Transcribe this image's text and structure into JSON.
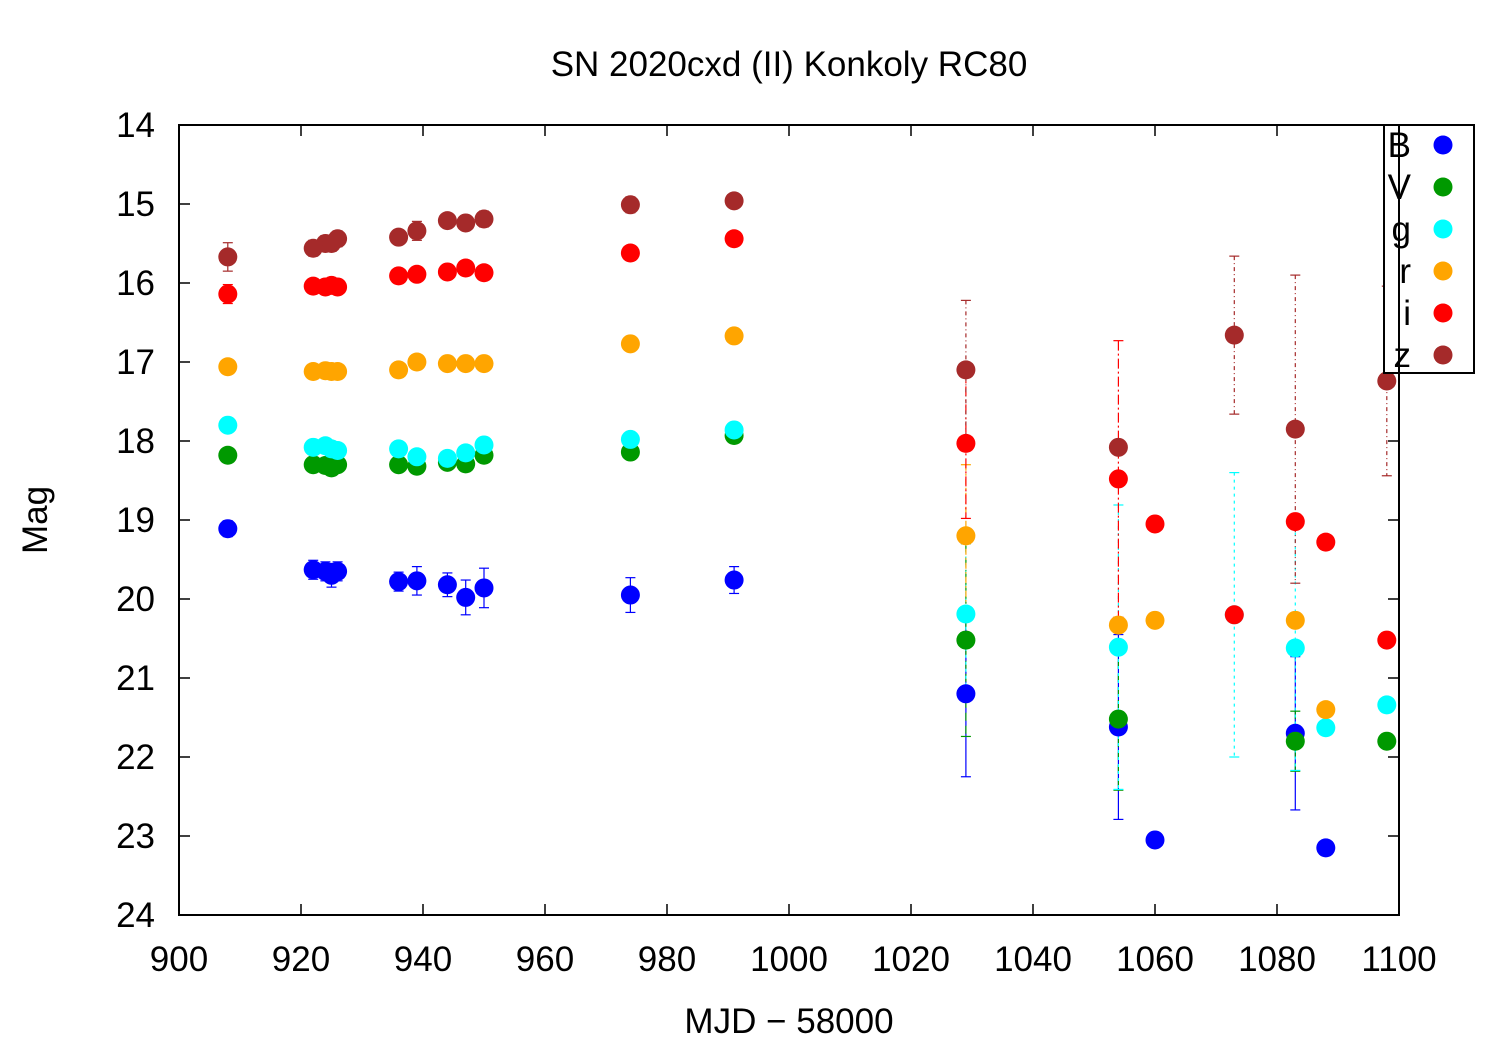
{
  "chart_data": {
    "type": "scatter",
    "title": "SN 2020cxd (II) Konkoly RC80",
    "xlabel": "MJD − 58000",
    "ylabel": "Mag",
    "xlim": [
      900,
      1100
    ],
    "ylim": [
      14,
      24
    ],
    "y_inverted": true,
    "grid": false,
    "legend_position": "top-right",
    "xticks": [
      "900",
      "920",
      "940",
      "960",
      "980",
      "1000",
      "1020",
      "1040",
      "1060",
      "1080",
      "1100"
    ],
    "yticks": [
      "14",
      "15",
      "16",
      "17",
      "18",
      "19",
      "20",
      "21",
      "22",
      "23",
      "24"
    ],
    "series": [
      {
        "name": "B",
        "color": "#0000ff",
        "points": [
          {
            "x": 908,
            "y": 19.11,
            "err": 0.1
          },
          {
            "x": 922,
            "y": 19.63,
            "err": 0.12
          },
          {
            "x": 924,
            "y": 19.65,
            "err": 0.12
          },
          {
            "x": 925,
            "y": 19.7,
            "err": 0.15
          },
          {
            "x": 926,
            "y": 19.65,
            "err": 0.12
          },
          {
            "x": 936,
            "y": 19.78,
            "err": 0.12
          },
          {
            "x": 939,
            "y": 19.77,
            "err": 0.18
          },
          {
            "x": 944,
            "y": 19.82,
            "err": 0.15
          },
          {
            "x": 947,
            "y": 19.98,
            "err": 0.22
          },
          {
            "x": 950,
            "y": 19.86,
            "err": 0.25
          },
          {
            "x": 974,
            "y": 19.95,
            "err": 0.22
          },
          {
            "x": 991,
            "y": 19.76,
            "err": 0.17
          },
          {
            "x": 1029,
            "y": 21.2,
            "err": 1.05
          },
          {
            "x": 1054,
            "y": 21.62,
            "err": 1.17
          },
          {
            "x": 1060,
            "y": 23.05,
            "err": 0
          },
          {
            "x": 1083,
            "y": 21.7,
            "err": 0.97
          },
          {
            "x": 1088,
            "y": 23.15,
            "err": 0
          }
        ]
      },
      {
        "name": "V",
        "color": "#009900",
        "points": [
          {
            "x": 908,
            "y": 18.18,
            "err": 0.05
          },
          {
            "x": 922,
            "y": 18.3,
            "err": 0.06
          },
          {
            "x": 924,
            "y": 18.31,
            "err": 0.06
          },
          {
            "x": 925,
            "y": 18.34,
            "err": 0.06
          },
          {
            "x": 926,
            "y": 18.3,
            "err": 0.06
          },
          {
            "x": 936,
            "y": 18.3,
            "err": 0.06
          },
          {
            "x": 939,
            "y": 18.32,
            "err": 0.07
          },
          {
            "x": 944,
            "y": 18.27,
            "err": 0.07
          },
          {
            "x": 947,
            "y": 18.29,
            "err": 0.07
          },
          {
            "x": 950,
            "y": 18.18,
            "err": 0.07
          },
          {
            "x": 974,
            "y": 18.14,
            "err": 0.06
          },
          {
            "x": 991,
            "y": 17.93,
            "err": 0.05
          },
          {
            "x": 1029,
            "y": 20.52,
            "err": 1.22
          },
          {
            "x": 1054,
            "y": 21.52,
            "err": 0.9
          },
          {
            "x": 1083,
            "y": 21.8,
            "err": 0.38
          },
          {
            "x": 1098,
            "y": 21.8,
            "err": 0
          }
        ]
      },
      {
        "name": "g",
        "color": "#00ffff",
        "points": [
          {
            "x": 908,
            "y": 17.8,
            "err": 0.05
          },
          {
            "x": 922,
            "y": 18.08,
            "err": 0.06
          },
          {
            "x": 924,
            "y": 18.06,
            "err": 0.06
          },
          {
            "x": 925,
            "y": 18.1,
            "err": 0.06
          },
          {
            "x": 926,
            "y": 18.12,
            "err": 0.06
          },
          {
            "x": 936,
            "y": 18.1,
            "err": 0.06
          },
          {
            "x": 939,
            "y": 18.2,
            "err": 0.07
          },
          {
            "x": 944,
            "y": 18.22,
            "err": 0.07
          },
          {
            "x": 947,
            "y": 18.15,
            "err": 0.07
          },
          {
            "x": 950,
            "y": 18.05,
            "err": 0.07
          },
          {
            "x": 974,
            "y": 17.98,
            "err": 0.06
          },
          {
            "x": 991,
            "y": 17.86,
            "err": 0.05
          },
          {
            "x": 1029,
            "y": 20.19,
            "err": 1.08
          },
          {
            "x": 1054,
            "y": 20.61,
            "err": 1.8
          },
          {
            "x": 1073,
            "y": 20.2,
            "err": 1.8
          },
          {
            "x": 1083,
            "y": 20.62,
            "err": 1.55
          },
          {
            "x": 1088,
            "y": 21.63,
            "err": 0
          },
          {
            "x": 1098,
            "y": 21.34,
            "err": 0
          }
        ]
      },
      {
        "name": "r",
        "color": "#ffa500",
        "points": [
          {
            "x": 908,
            "y": 17.06,
            "err": 0.04
          },
          {
            "x": 922,
            "y": 17.12,
            "err": 0.04
          },
          {
            "x": 924,
            "y": 17.11,
            "err": 0.04
          },
          {
            "x": 925,
            "y": 17.12,
            "err": 0.04
          },
          {
            "x": 926,
            "y": 17.12,
            "err": 0.04
          },
          {
            "x": 936,
            "y": 17.1,
            "err": 0.04
          },
          {
            "x": 939,
            "y": 17.0,
            "err": 0.04
          },
          {
            "x": 944,
            "y": 17.02,
            "err": 0.04
          },
          {
            "x": 947,
            "y": 17.02,
            "err": 0.04
          },
          {
            "x": 950,
            "y": 17.02,
            "err": 0.04
          },
          {
            "x": 974,
            "y": 16.77,
            "err": 0.04
          },
          {
            "x": 991,
            "y": 16.67,
            "err": 0.04
          },
          {
            "x": 1029,
            "y": 19.2,
            "err": 0.9
          },
          {
            "x": 1054,
            "y": 20.33,
            "err": 0
          },
          {
            "x": 1060,
            "y": 20.27,
            "err": 0
          },
          {
            "x": 1083,
            "y": 20.27,
            "err": 0
          },
          {
            "x": 1088,
            "y": 21.4,
            "err": 0
          }
        ]
      },
      {
        "name": "i",
        "color": "#ff0000",
        "points": [
          {
            "x": 908,
            "y": 16.14,
            "err": 0.12
          },
          {
            "x": 922,
            "y": 16.04,
            "err": 0.04
          },
          {
            "x": 924,
            "y": 16.05,
            "err": 0.04
          },
          {
            "x": 925,
            "y": 16.03,
            "err": 0.04
          },
          {
            "x": 926,
            "y": 16.05,
            "err": 0.04
          },
          {
            "x": 936,
            "y": 15.91,
            "err": 0.04
          },
          {
            "x": 939,
            "y": 15.89,
            "err": 0.04
          },
          {
            "x": 944,
            "y": 15.86,
            "err": 0.04
          },
          {
            "x": 947,
            "y": 15.81,
            "err": 0.04
          },
          {
            "x": 950,
            "y": 15.87,
            "err": 0.04
          },
          {
            "x": 974,
            "y": 15.62,
            "err": 0.04
          },
          {
            "x": 991,
            "y": 15.44,
            "err": 0.04
          },
          {
            "x": 1029,
            "y": 18.03,
            "err": 0.95
          },
          {
            "x": 1054,
            "y": 18.48,
            "err": 1.75
          },
          {
            "x": 1060,
            "y": 19.05,
            "err": 0
          },
          {
            "x": 1073,
            "y": 20.2,
            "err": 0
          },
          {
            "x": 1083,
            "y": 19.02,
            "err": 0
          },
          {
            "x": 1088,
            "y": 19.28,
            "err": 0
          },
          {
            "x": 1098,
            "y": 20.52,
            "err": 0
          }
        ]
      },
      {
        "name": "z",
        "color": "#a52a2a",
        "points": [
          {
            "x": 908,
            "y": 15.67,
            "err": 0.18
          },
          {
            "x": 922,
            "y": 15.56,
            "err": 0.1
          },
          {
            "x": 924,
            "y": 15.5,
            "err": 0.1
          },
          {
            "x": 925,
            "y": 15.5,
            "err": 0.1
          },
          {
            "x": 926,
            "y": 15.44,
            "err": 0.1
          },
          {
            "x": 936,
            "y": 15.42,
            "err": 0.08
          },
          {
            "x": 939,
            "y": 15.34,
            "err": 0.12
          },
          {
            "x": 944,
            "y": 15.21,
            "err": 0.08
          },
          {
            "x": 947,
            "y": 15.24,
            "err": 0.08
          },
          {
            "x": 950,
            "y": 15.19,
            "err": 0.1
          },
          {
            "x": 974,
            "y": 15.01,
            "err": 0.1
          },
          {
            "x": 991,
            "y": 14.96,
            "err": 0.06
          },
          {
            "x": 1029,
            "y": 17.1,
            "err": 0.88
          },
          {
            "x": 1054,
            "y": 18.08,
            "err": 0
          },
          {
            "x": 1073,
            "y": 16.66,
            "err": 1.0
          },
          {
            "x": 1083,
            "y": 17.85,
            "err": 1.95
          },
          {
            "x": 1098,
            "y": 17.24,
            "err": 1.2
          }
        ]
      }
    ]
  }
}
